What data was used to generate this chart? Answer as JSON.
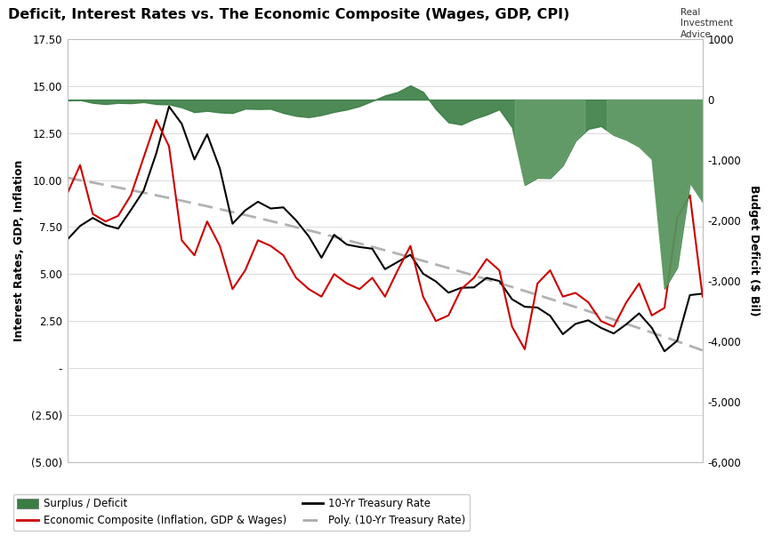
{
  "title": "Deficit, Interest Rates vs. The Economic Composite (Wages, GDP, CPI)",
  "ylabel_left": "Interest Rates, GDP, Inflation",
  "ylabel_right": "Budget Deficit ($ Bil)",
  "ylim_left": [
    -5.0,
    17.5
  ],
  "ylim_right": [
    -6000,
    1000
  ],
  "yticks_left": [
    17.5,
    15.0,
    12.5,
    10.0,
    7.5,
    5.0,
    2.5,
    0.0,
    -2.5,
    -5.0
  ],
  "ytick_labels_left": [
    "17.50",
    "15.00",
    "12.50",
    "10.00",
    "7.50",
    "5.00",
    "2.50",
    "-",
    "(2.50)",
    "(5.00)"
  ],
  "yticks_right": [
    1000,
    0,
    -1000,
    -2000,
    -3000,
    -4000,
    -5000,
    -6000
  ],
  "ytick_labels_right": [
    "1000",
    "0",
    "-1,000",
    "-2,000",
    "-3,000",
    "-4,000",
    "-5,000",
    "-6,000"
  ],
  "xlim": [
    1973,
    2023
  ],
  "xticks": [
    1973,
    1978,
    1983,
    1988,
    1993,
    1998,
    2003,
    2008,
    2013,
    2018,
    2023
  ],
  "bg_color": "#ffffff",
  "plot_bg_color": "#ffffff",
  "grid_color": "#cccccc",
  "fill_color": "#3a7d44",
  "treasury_color": "#000000",
  "composite_color": "#cc0000",
  "poly_color": "#aaaaaa",
  "logo_text": "Real\nInvestment\nAdvice",
  "treasury_rate": [
    6.84,
    7.56,
    7.99,
    7.61,
    7.42,
    8.41,
    9.44,
    11.43,
    13.92,
    13.0,
    11.1,
    12.44,
    10.62,
    7.68,
    8.39,
    8.85,
    8.49,
    8.55,
    7.86,
    7.01,
    5.87,
    7.09,
    6.57,
    6.44,
    6.35,
    5.26,
    5.65,
    6.03,
    5.02,
    4.61,
    4.01,
    4.27,
    4.29,
    4.8,
    4.63,
    3.66,
    3.26,
    3.22,
    2.78,
    1.8,
    2.35,
    2.54,
    2.14,
    1.84,
    2.33,
    2.91,
    2.14,
    0.89,
    1.45,
    3.88,
    3.96
  ],
  "composite": [
    9.3,
    10.8,
    8.2,
    7.8,
    8.1,
    9.2,
    11.2,
    13.2,
    11.8,
    6.8,
    6.0,
    7.8,
    6.5,
    4.2,
    5.2,
    6.8,
    6.5,
    6.0,
    4.8,
    4.2,
    3.8,
    5.0,
    4.5,
    4.2,
    4.8,
    3.8,
    5.2,
    6.5,
    3.8,
    2.5,
    2.8,
    4.2,
    4.8,
    5.8,
    5.2,
    2.2,
    1.0,
    4.5,
    5.2,
    3.8,
    4.0,
    3.5,
    2.5,
    2.2,
    3.5,
    4.5,
    2.8,
    3.2,
    8.0,
    9.2,
    3.8
  ],
  "deficit_values": [
    -14.9,
    -6.1,
    -53.2,
    -73.7,
    -53.7,
    -59.2,
    -40.7,
    -73.8,
    -79.0,
    -128.0,
    -207.8,
    -185.4,
    -212.3,
    -221.2,
    -149.7,
    -155.2,
    -152.6,
    -221.0,
    -269.2,
    -290.4,
    -255.1,
    -203.2,
    -164.0,
    -107.4,
    -21.9,
    69.2,
    125.6,
    236.2,
    128.2,
    -157.8,
    -377.6,
    -412.7,
    -318.3,
    -248.2,
    -160.7,
    -458.6,
    -1412.7,
    -1294.0,
    -1299.6,
    -1087.0,
    -679.5,
    -484.6,
    -438.5,
    -585.6,
    -665.7,
    -779.1,
    -984.4,
    -3131.9,
    -2775.6,
    -1375.1,
    -1695.0
  ]
}
